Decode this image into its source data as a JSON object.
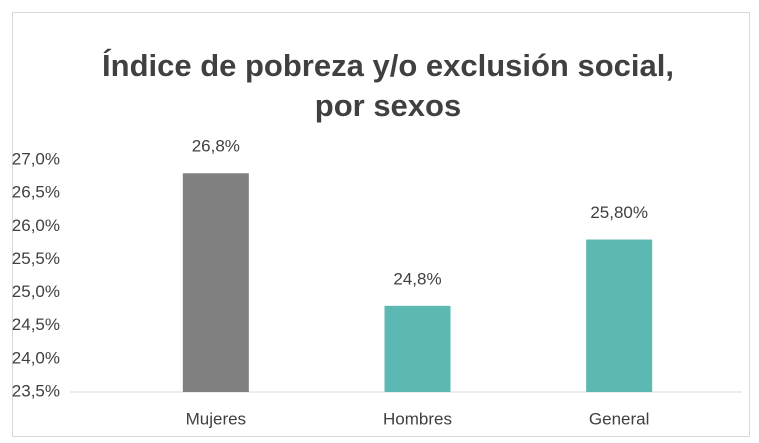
{
  "chart_data": {
    "type": "bar",
    "title_lines": [
      "Índice de pobreza y/o exclusión social,",
      "por sexos"
    ],
    "categories": [
      "Mujeres",
      "Hombres",
      "General"
    ],
    "values": [
      26.8,
      24.8,
      25.8
    ],
    "value_labels": [
      "26,8%",
      "24,8%",
      "25,80%"
    ],
    "colors": [
      "#808080",
      "#5bb8b2",
      "#5bb8b2"
    ],
    "ylim": [
      23.5,
      27.0
    ],
    "yticks": [
      {
        "value": 23.5,
        "label": "23,5%"
      },
      {
        "value": 24.0,
        "label": "24,0%"
      },
      {
        "value": 24.5,
        "label": "24,5%"
      },
      {
        "value": 25.0,
        "label": "25,0%"
      },
      {
        "value": 25.5,
        "label": "25,5%"
      },
      {
        "value": 26.0,
        "label": "26,0%"
      },
      {
        "value": 26.5,
        "label": "26,5%"
      },
      {
        "value": 27.0,
        "label": "27,0%"
      }
    ],
    "grid": false
  }
}
